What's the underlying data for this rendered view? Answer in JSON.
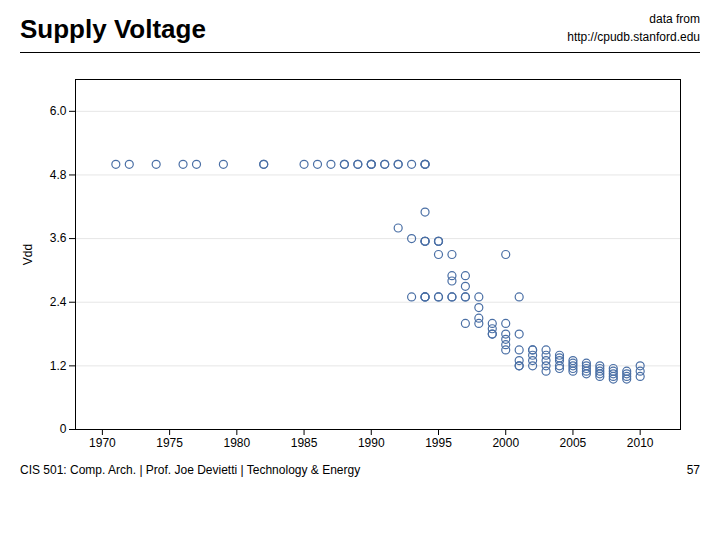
{
  "chart_data": {
    "type": "scatter",
    "title": "Supply Voltage",
    "annotations": [
      "data from",
      "http://cpudb.stanford.edu",
      "CIS 501: Comp. Arch.  |  Prof. Joe Devietti  |  Technology & Energy",
      "57"
    ],
    "ylabel": "Vdd",
    "color": "#4a6fa5",
    "marker": "circle",
    "grid": "y",
    "xlim": [
      1968,
      2013
    ],
    "ylim": [
      0,
      6.6
    ],
    "xticks": [
      1970,
      1975,
      1980,
      1985,
      1990,
      1995,
      2000,
      2005,
      2010
    ],
    "yticks": [
      0,
      1.2,
      2.4,
      3.6,
      4.8,
      {
        "value": 6.0,
        "label": "6.0"
      }
    ],
    "x": [
      1971,
      1972,
      1974,
      1976,
      1977,
      1979,
      1982,
      1982,
      1985,
      1986,
      1987,
      1988,
      1988,
      1989,
      1989,
      1990,
      1990,
      1990,
      1991,
      1991,
      1992,
      1992,
      1993,
      1994,
      1994,
      1994,
      1992,
      1993,
      1994,
      1994,
      1994,
      1995,
      1995,
      1995,
      1995,
      1996,
      1994,
      1996,
      1996,
      1993,
      1994,
      1994,
      1994,
      1995,
      1995,
      1996,
      1996,
      1997,
      1997,
      1997,
      1997,
      1998,
      1998,
      1998,
      1999,
      1999,
      1999,
      1999,
      2000,
      2000,
      2000,
      2000,
      2000,
      2001,
      2001,
      1997,
      1998,
      2001,
      2001,
      2001,
      2002,
      2002,
      2002,
      2002,
      2002,
      2003,
      2003,
      2003,
      2003,
      2003,
      2004,
      2004,
      2004,
      2004,
      2004,
      2005,
      2005,
      2005,
      2005,
      2005,
      2006,
      2006,
      2006,
      2006,
      2006,
      2007,
      2007,
      2007,
      2007,
      2007,
      2008,
      2008,
      2008,
      2008,
      2008,
      2009,
      2009,
      2009,
      2009,
      2010,
      2010,
      2010,
      2001,
      2000
    ],
    "values": [
      5.0,
      5.0,
      5.0,
      5.0,
      5.0,
      5.0,
      5.0,
      5.0,
      5.0,
      5.0,
      5.0,
      5.0,
      5.0,
      5.0,
      5.0,
      5.0,
      5.0,
      5.0,
      5.0,
      5.0,
      5.0,
      5.0,
      5.0,
      5.0,
      5.0,
      5.0,
      3.8,
      3.6,
      3.55,
      3.55,
      3.55,
      3.55,
      3.55,
      3.55,
      3.3,
      3.3,
      4.1,
      2.9,
      2.8,
      2.5,
      2.5,
      2.5,
      2.5,
      2.5,
      2.5,
      2.5,
      2.5,
      2.5,
      2.9,
      2.7,
      2.5,
      2.5,
      2.3,
      2.1,
      2.0,
      1.9,
      1.8,
      1.8,
      1.8,
      1.7,
      1.6,
      1.5,
      2.0,
      1.8,
      1.5,
      2.0,
      2.0,
      1.3,
      1.2,
      1.2,
      1.5,
      1.5,
      1.4,
      1.3,
      1.2,
      1.5,
      1.4,
      1.3,
      1.2,
      1.1,
      1.4,
      1.35,
      1.3,
      1.2,
      1.15,
      1.3,
      1.25,
      1.2,
      1.15,
      1.1,
      1.25,
      1.2,
      1.15,
      1.1,
      1.05,
      1.2,
      1.15,
      1.1,
      1.05,
      1.0,
      1.15,
      1.1,
      1.05,
      1.0,
      0.95,
      1.1,
      1.05,
      1.0,
      0.95,
      1.2,
      1.1,
      1.0,
      2.5,
      3.3
    ]
  }
}
